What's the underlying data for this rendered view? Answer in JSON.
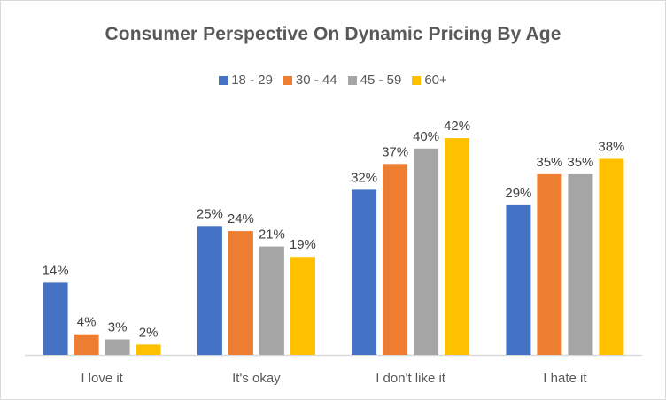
{
  "chart_data": {
    "type": "bar",
    "title": "Consumer Perspective On Dynamic Pricing By Age",
    "xlabel": "",
    "ylabel": "",
    "categories": [
      "I love it",
      "It's okay",
      "I don't like it",
      "I hate it"
    ],
    "series": [
      {
        "name": "18 - 29",
        "color": "#4472c4",
        "values": [
          14,
          25,
          32,
          29
        ]
      },
      {
        "name": "30 - 44",
        "color": "#ed7d31",
        "values": [
          4,
          24,
          37,
          35
        ]
      },
      {
        "name": "45 - 59",
        "color": "#a5a5a5",
        "values": [
          3,
          21,
          40,
          35
        ]
      },
      {
        "name": "60+",
        "color": "#ffc000",
        "values": [
          2,
          19,
          42,
          38
        ]
      }
    ],
    "value_suffix": "%",
    "ylim": [
      0,
      45
    ],
    "grid": false,
    "legend": "top-center",
    "data_labels": true
  }
}
